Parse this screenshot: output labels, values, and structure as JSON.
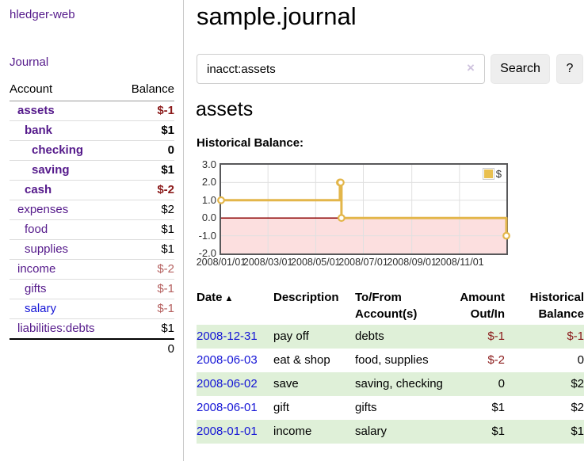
{
  "palette": {
    "link_purple": "#551a8b",
    "link_blue": "#1414d6",
    "negative_red": "#8b1a1a",
    "negative_soft_red": "#b5605f",
    "row_highlight_green": "#dff0d8",
    "chart_line_gold": "#e3b64a",
    "chart_negative_region_pink": "#fcdfdf",
    "chart_zero_line_red": "#8b0000"
  },
  "sidebar": {
    "title": "hledger-web",
    "journal_label": "Journal",
    "accounts_table": {
      "headers": [
        "Account",
        "Balance"
      ],
      "rows": [
        {
          "account": "assets",
          "indent": 1,
          "bold": true,
          "balance": "$-1",
          "balance_style": "neg",
          "link_style": "visited"
        },
        {
          "account": "bank",
          "indent": 2,
          "bold": true,
          "balance": "$1",
          "balance_style": "normal",
          "link_style": "visited"
        },
        {
          "account": "checking",
          "indent": 3,
          "bold": true,
          "balance": "0",
          "balance_style": "normal",
          "link_style": "visited"
        },
        {
          "account": "saving",
          "indent": 3,
          "bold": true,
          "balance": "$1",
          "balance_style": "normal",
          "link_style": "visited"
        },
        {
          "account": "cash",
          "indent": 2,
          "bold": true,
          "balance": "$-2",
          "balance_style": "neg",
          "link_style": "visited"
        },
        {
          "account": "expenses",
          "indent": 1,
          "bold": false,
          "balance": "$2",
          "balance_style": "normal",
          "link_style": "visited"
        },
        {
          "account": "food",
          "indent": 2,
          "bold": false,
          "balance": "$1",
          "balance_style": "normal",
          "link_style": "visited"
        },
        {
          "account": "supplies",
          "indent": 2,
          "bold": false,
          "balance": "$1",
          "balance_style": "normal",
          "link_style": "visited"
        },
        {
          "account": "income",
          "indent": 1,
          "bold": false,
          "balance": "$-2",
          "balance_style": "neg-soft",
          "link_style": "visited"
        },
        {
          "account": "gifts",
          "indent": 2,
          "bold": false,
          "balance": "$-1",
          "balance_style": "neg-soft",
          "link_style": "visited"
        },
        {
          "account": "salary",
          "indent": 2,
          "bold": false,
          "balance": "$-1",
          "balance_style": "neg-soft",
          "link_style": "unvisited"
        },
        {
          "account": "liabilities:debts",
          "indent": 1,
          "bold": false,
          "balance": "$1",
          "balance_style": "normal",
          "link_style": "visited"
        }
      ],
      "total": "0"
    }
  },
  "main": {
    "title": "sample.journal",
    "search": {
      "value": "inacct:assets",
      "clear_icon": "×",
      "button_label": "Search",
      "help_label": "?"
    },
    "account_heading": "assets",
    "chart_label": "Historical Balance:",
    "register_table": {
      "headers": [
        "Date",
        "Description",
        "To/From Account(s)",
        "Amount Out/In",
        "Historical Balance"
      ],
      "sort_icon": "▲",
      "rows": [
        {
          "date": "2008-12-31",
          "description": "pay off",
          "accounts": "debts",
          "amount": "$-1",
          "amount_negative": true,
          "balance": "$-1",
          "balance_negative": true,
          "highlighted": true
        },
        {
          "date": "2008-06-03",
          "description": "eat & shop",
          "accounts": "food, supplies",
          "amount": "$-2",
          "amount_negative": true,
          "balance": "0",
          "balance_negative": false,
          "highlighted": false
        },
        {
          "date": "2008-06-02",
          "description": "save",
          "accounts": "saving, checking",
          "amount": "0",
          "amount_negative": false,
          "balance": "$2",
          "balance_negative": false,
          "highlighted": true
        },
        {
          "date": "2008-06-01",
          "description": "gift",
          "accounts": "gifts",
          "amount": "$1",
          "amount_negative": false,
          "balance": "$2",
          "balance_negative": false,
          "highlighted": false
        },
        {
          "date": "2008-01-01",
          "description": "income",
          "accounts": "salary",
          "amount": "$1",
          "amount_negative": false,
          "balance": "$1",
          "balance_negative": false,
          "highlighted": true
        }
      ]
    }
  },
  "chart_data": {
    "type": "line",
    "step": true,
    "title": "Historical Balance:",
    "series": [
      {
        "name": "$",
        "points": [
          {
            "date": "2008-01-01",
            "value": 1
          },
          {
            "date": "2008-06-01",
            "value": 2
          },
          {
            "date": "2008-06-02",
            "value": 2
          },
          {
            "date": "2008-06-03",
            "value": 0
          },
          {
            "date": "2008-12-31",
            "value": -1
          }
        ]
      }
    ],
    "ylim": [
      -2,
      3
    ],
    "xlim": [
      "2008-01-01",
      "2008-12-31"
    ],
    "yticks": [
      "3.0",
      "2.0",
      "1.0",
      "0.0",
      "-1.0",
      "-2.0"
    ],
    "xticks": [
      "2008/01/01",
      "2008/03/01",
      "2008/05/01",
      "2008/07/01",
      "2008/09/01",
      "2008/11/01"
    ],
    "legend": "$",
    "grid": true,
    "legend_position": "top-right",
    "colors": {
      "line": "#e3b64a",
      "marker_fill": "#ffffff",
      "zero_line": "#8b0000",
      "negative_region": "#fcdfdf",
      "grid": "#e0e0e0"
    }
  }
}
